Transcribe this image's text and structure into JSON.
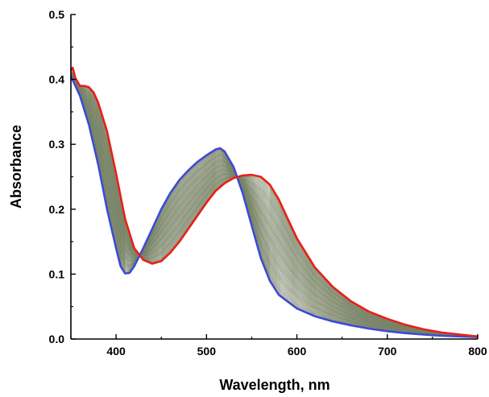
{
  "chart_data": {
    "type": "line",
    "title": "",
    "xlabel": "Wavelength, nm",
    "ylabel": "Absorbance",
    "xlim": [
      350,
      800
    ],
    "ylim": [
      0.0,
      0.5
    ],
    "xticks": [
      400,
      500,
      600,
      700,
      800
    ],
    "yticks": [
      0.0,
      0.1,
      0.2,
      0.3,
      0.4,
      0.5
    ],
    "xtick_labels": [
      "400",
      "500",
      "600",
      "700",
      "800"
    ],
    "ytick_labels": [
      "0.0",
      "0.1",
      "0.2",
      "0.3",
      "0.4",
      "0.5"
    ],
    "grid": false,
    "legend": false,
    "intermediate_trace_count": 60,
    "intermediate_colors": [
      "#8a8a3a",
      "#3a8a8a",
      "#a07a3a",
      "#5a8a4a",
      "#7a6a9a",
      "#9a9a5a",
      "#4a7a9a",
      "#aa8a5a"
    ],
    "series": [
      {
        "color": "#3b4bd6",
        "x": [
          350,
          360,
          370,
          380,
          390,
          400,
          405,
          410,
          415,
          420,
          430,
          440,
          450,
          460,
          470,
          480,
          490,
          500,
          510,
          515,
          520,
          530,
          540,
          550,
          560,
          570,
          580,
          600,
          620,
          640,
          660,
          680,
          700,
          720,
          740,
          760,
          780,
          800
        ],
        "y": [
          0.405,
          0.375,
          0.33,
          0.27,
          0.2,
          0.14,
          0.112,
          0.101,
          0.102,
          0.112,
          0.14,
          0.17,
          0.2,
          0.225,
          0.245,
          0.26,
          0.273,
          0.283,
          0.292,
          0.294,
          0.289,
          0.265,
          0.225,
          0.175,
          0.125,
          0.09,
          0.068,
          0.047,
          0.035,
          0.027,
          0.021,
          0.016,
          0.012,
          0.009,
          0.007,
          0.005,
          0.004,
          0.003
        ]
      },
      {
        "color": "#e8201a",
        "x": [
          350,
          352,
          355,
          360,
          365,
          370,
          375,
          380,
          390,
          400,
          410,
          420,
          430,
          440,
          450,
          460,
          470,
          480,
          490,
          500,
          510,
          520,
          530,
          540,
          550,
          560,
          570,
          580,
          590,
          600,
          620,
          640,
          660,
          680,
          700,
          720,
          740,
          760,
          780,
          800
        ],
        "y": [
          0.413,
          0.418,
          0.402,
          0.39,
          0.39,
          0.388,
          0.38,
          0.365,
          0.32,
          0.255,
          0.185,
          0.14,
          0.122,
          0.116,
          0.12,
          0.133,
          0.15,
          0.17,
          0.19,
          0.21,
          0.228,
          0.24,
          0.248,
          0.252,
          0.253,
          0.25,
          0.238,
          0.215,
          0.185,
          0.155,
          0.11,
          0.08,
          0.058,
          0.042,
          0.031,
          0.022,
          0.015,
          0.01,
          0.007,
          0.004
        ]
      }
    ]
  }
}
